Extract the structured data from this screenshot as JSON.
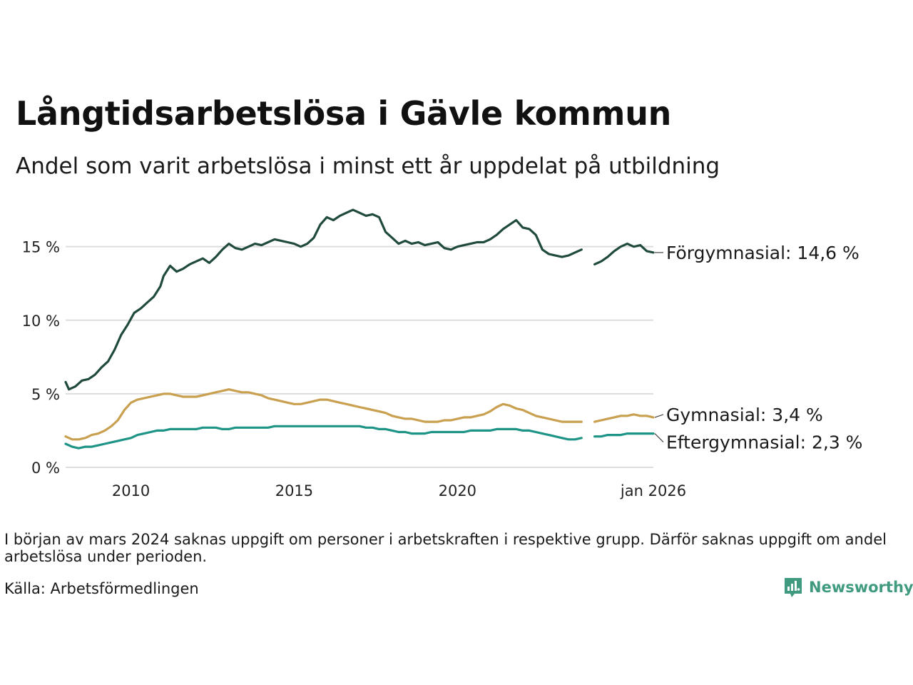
{
  "title": "Långtidsarbetslösa i Gävle kommun",
  "subtitle": "Andel som varit arbetslösa i minst ett år uppdelat på utbildning",
  "note": "I början av mars 2024 saknas uppgift om personer i arbetskraften i respektive grupp. Därför saknas uppgift om andel arbetslösa under perioden.",
  "source": "Källa: Arbetsförmedlingen",
  "brand": "Newsworthy",
  "colors": {
    "forgymnasial": "#1f4a3c",
    "gymnasial": "#c9a04f",
    "eftergymnasial": "#1d9485",
    "grid": "#dddddd",
    "brand": "#3f9a7f"
  },
  "chart_data": {
    "type": "line",
    "title": "Långtidsarbetslösa i Gävle kommun",
    "xlabel": "",
    "ylabel": "",
    "xlim": [
      2008.0,
      2026.0
    ],
    "ylim": [
      0,
      17.7
    ],
    "yticks": [
      0,
      5,
      10,
      15
    ],
    "ytick_labels": [
      "0 %",
      "5 %",
      "10 %",
      "15 %"
    ],
    "xticks": [
      2010,
      2015,
      2020,
      2026.0
    ],
    "xtick_labels": [
      "2010",
      "2015",
      "2020",
      "jan 2026"
    ],
    "grid": true,
    "gap": [
      2023.85,
      2024.15
    ],
    "series": [
      {
        "name": "Förgymnasial",
        "label": "Förgymnasial: 14,6 %",
        "color": "#1f4a3c",
        "x": [
          2008.0,
          2008.1,
          2008.3,
          2008.5,
          2008.7,
          2008.9,
          2009.1,
          2009.3,
          2009.5,
          2009.7,
          2009.9,
          2010.1,
          2010.3,
          2010.5,
          2010.7,
          2010.9,
          2011.0,
          2011.2,
          2011.4,
          2011.6,
          2011.8,
          2012.0,
          2012.2,
          2012.4,
          2012.6,
          2012.8,
          2013.0,
          2013.2,
          2013.4,
          2013.6,
          2013.8,
          2014.0,
          2014.2,
          2014.4,
          2014.6,
          2014.8,
          2015.0,
          2015.2,
          2015.4,
          2015.6,
          2015.8,
          2016.0,
          2016.2,
          2016.4,
          2016.6,
          2016.8,
          2017.0,
          2017.2,
          2017.4,
          2017.6,
          2017.8,
          2018.0,
          2018.2,
          2018.4,
          2018.6,
          2018.8,
          2019.0,
          2019.2,
          2019.4,
          2019.6,
          2019.8,
          2020.0,
          2020.2,
          2020.4,
          2020.6,
          2020.8,
          2021.0,
          2021.2,
          2021.4,
          2021.6,
          2021.8,
          2022.0,
          2022.2,
          2022.4,
          2022.6,
          2022.8,
          2023.0,
          2023.2,
          2023.4,
          2023.6,
          2023.8,
          2024.2,
          2024.4,
          2024.6,
          2024.8,
          2025.0,
          2025.2,
          2025.4,
          2025.6,
          2025.8,
          2026.0
        ],
        "values": [
          5.8,
          5.3,
          5.5,
          5.9,
          6.0,
          6.3,
          6.8,
          7.2,
          8.0,
          9.0,
          9.7,
          10.5,
          10.8,
          11.2,
          11.6,
          12.3,
          13.0,
          13.7,
          13.3,
          13.5,
          13.8,
          14.0,
          14.2,
          13.9,
          14.3,
          14.8,
          15.2,
          14.9,
          14.8,
          15.0,
          15.2,
          15.1,
          15.3,
          15.5,
          15.4,
          15.3,
          15.2,
          15.0,
          15.2,
          15.6,
          16.5,
          17.0,
          16.8,
          17.1,
          17.3,
          17.5,
          17.3,
          17.1,
          17.2,
          17.0,
          16.0,
          15.6,
          15.2,
          15.4,
          15.2,
          15.3,
          15.1,
          15.2,
          15.3,
          14.9,
          14.8,
          15.0,
          15.1,
          15.2,
          15.3,
          15.3,
          15.5,
          15.8,
          16.2,
          16.5,
          16.8,
          16.3,
          16.2,
          15.8,
          14.8,
          14.5,
          14.4,
          14.3,
          14.4,
          14.6,
          14.8,
          13.8,
          14.0,
          14.3,
          14.7,
          15.0,
          15.2,
          15.0,
          15.1,
          14.7,
          14.6
        ]
      },
      {
        "name": "Gymnasial",
        "label": "Gymnasial:  3,4 %",
        "color": "#c9a04f",
        "x": [
          2008.0,
          2008.2,
          2008.4,
          2008.6,
          2008.8,
          2009.0,
          2009.2,
          2009.4,
          2009.6,
          2009.8,
          2010.0,
          2010.2,
          2010.4,
          2010.6,
          2010.8,
          2011.0,
          2011.2,
          2011.4,
          2011.6,
          2011.8,
          2012.0,
          2012.2,
          2012.4,
          2012.6,
          2012.8,
          2013.0,
          2013.2,
          2013.4,
          2013.6,
          2013.8,
          2014.0,
          2014.2,
          2014.4,
          2014.6,
          2014.8,
          2015.0,
          2015.2,
          2015.4,
          2015.6,
          2015.8,
          2016.0,
          2016.2,
          2016.4,
          2016.6,
          2016.8,
          2017.0,
          2017.2,
          2017.4,
          2017.6,
          2017.8,
          2018.0,
          2018.2,
          2018.4,
          2018.6,
          2018.8,
          2019.0,
          2019.2,
          2019.4,
          2019.6,
          2019.8,
          2020.0,
          2020.2,
          2020.4,
          2020.6,
          2020.8,
          2021.0,
          2021.2,
          2021.4,
          2021.6,
          2021.8,
          2022.0,
          2022.2,
          2022.4,
          2022.6,
          2022.8,
          2023.0,
          2023.2,
          2023.4,
          2023.6,
          2023.8,
          2024.2,
          2024.4,
          2024.6,
          2024.8,
          2025.0,
          2025.2,
          2025.4,
          2025.6,
          2025.8,
          2026.0
        ],
        "values": [
          2.1,
          1.9,
          1.9,
          2.0,
          2.2,
          2.3,
          2.5,
          2.8,
          3.2,
          3.9,
          4.4,
          4.6,
          4.7,
          4.8,
          4.9,
          5.0,
          5.0,
          4.9,
          4.8,
          4.8,
          4.8,
          4.9,
          5.0,
          5.1,
          5.2,
          5.3,
          5.2,
          5.1,
          5.1,
          5.0,
          4.9,
          4.7,
          4.6,
          4.5,
          4.4,
          4.3,
          4.3,
          4.4,
          4.5,
          4.6,
          4.6,
          4.5,
          4.4,
          4.3,
          4.2,
          4.1,
          4.0,
          3.9,
          3.8,
          3.7,
          3.5,
          3.4,
          3.3,
          3.3,
          3.2,
          3.1,
          3.1,
          3.1,
          3.2,
          3.2,
          3.3,
          3.4,
          3.4,
          3.5,
          3.6,
          3.8,
          4.1,
          4.3,
          4.2,
          4.0,
          3.9,
          3.7,
          3.5,
          3.4,
          3.3,
          3.2,
          3.1,
          3.1,
          3.1,
          3.1,
          3.1,
          3.2,
          3.3,
          3.4,
          3.5,
          3.5,
          3.6,
          3.5,
          3.5,
          3.4
        ]
      },
      {
        "name": "Eftergymnasial",
        "label": "Eftergymnasial:  2,3 %",
        "color": "#1d9485",
        "x": [
          2008.0,
          2008.2,
          2008.4,
          2008.6,
          2008.8,
          2009.0,
          2009.2,
          2009.4,
          2009.6,
          2009.8,
          2010.0,
          2010.2,
          2010.4,
          2010.6,
          2010.8,
          2011.0,
          2011.2,
          2011.4,
          2011.6,
          2011.8,
          2012.0,
          2012.2,
          2012.4,
          2012.6,
          2012.8,
          2013.0,
          2013.2,
          2013.4,
          2013.6,
          2013.8,
          2014.0,
          2014.2,
          2014.4,
          2014.6,
          2014.8,
          2015.0,
          2015.2,
          2015.4,
          2015.6,
          2015.8,
          2016.0,
          2016.2,
          2016.4,
          2016.6,
          2016.8,
          2017.0,
          2017.2,
          2017.4,
          2017.6,
          2017.8,
          2018.0,
          2018.2,
          2018.4,
          2018.6,
          2018.8,
          2019.0,
          2019.2,
          2019.4,
          2019.6,
          2019.8,
          2020.0,
          2020.2,
          2020.4,
          2020.6,
          2020.8,
          2021.0,
          2021.2,
          2021.4,
          2021.6,
          2021.8,
          2022.0,
          2022.2,
          2022.4,
          2022.6,
          2022.8,
          2023.0,
          2023.2,
          2023.4,
          2023.6,
          2023.8,
          2024.2,
          2024.4,
          2024.6,
          2024.8,
          2025.0,
          2025.2,
          2025.4,
          2025.6,
          2025.8,
          2026.0
        ],
        "values": [
          1.6,
          1.4,
          1.3,
          1.4,
          1.4,
          1.5,
          1.6,
          1.7,
          1.8,
          1.9,
          2.0,
          2.2,
          2.3,
          2.4,
          2.5,
          2.5,
          2.6,
          2.6,
          2.6,
          2.6,
          2.6,
          2.7,
          2.7,
          2.7,
          2.6,
          2.6,
          2.7,
          2.7,
          2.7,
          2.7,
          2.7,
          2.7,
          2.8,
          2.8,
          2.8,
          2.8,
          2.8,
          2.8,
          2.8,
          2.8,
          2.8,
          2.8,
          2.8,
          2.8,
          2.8,
          2.8,
          2.7,
          2.7,
          2.6,
          2.6,
          2.5,
          2.4,
          2.4,
          2.3,
          2.3,
          2.3,
          2.4,
          2.4,
          2.4,
          2.4,
          2.4,
          2.4,
          2.5,
          2.5,
          2.5,
          2.5,
          2.6,
          2.6,
          2.6,
          2.6,
          2.5,
          2.5,
          2.4,
          2.3,
          2.2,
          2.1,
          2.0,
          1.9,
          1.9,
          2.0,
          2.1,
          2.1,
          2.2,
          2.2,
          2.2,
          2.3,
          2.3,
          2.3,
          2.3,
          2.3
        ]
      }
    ]
  }
}
